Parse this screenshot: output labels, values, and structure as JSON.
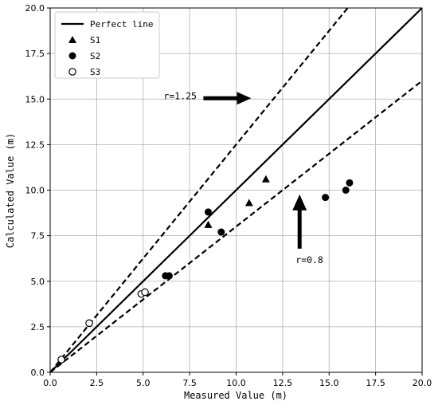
{
  "chart_data": {
    "type": "scatter",
    "xlabel": "Measured Value (m)",
    "ylabel": "Calculated Value (m)",
    "xlim": [
      0,
      20
    ],
    "ylim": [
      0,
      20
    ],
    "xticks": [
      "0.0",
      "2.5",
      "5.0",
      "7.5",
      "10.0",
      "12.5",
      "15.0",
      "17.5",
      "20.0"
    ],
    "yticks": [
      "0.0",
      "2.5",
      "5.0",
      "7.5",
      "10.0",
      "12.5",
      "15.0",
      "17.5",
      "20.0"
    ],
    "grid": true,
    "legend_position": "top-left",
    "lines": [
      {
        "name": "Perfect line",
        "slope": 1.0,
        "style": "solid"
      },
      {
        "slope": 1.25,
        "style": "dashed"
      },
      {
        "slope": 0.8,
        "style": "dashed"
      }
    ],
    "series": [
      {
        "name": "S1",
        "marker": "triangle",
        "points": [
          [
            8.5,
            8.1
          ],
          [
            10.7,
            9.3
          ],
          [
            11.6,
            10.6
          ]
        ]
      },
      {
        "name": "S2",
        "marker": "filled-circle",
        "points": [
          [
            6.2,
            5.3
          ],
          [
            6.4,
            5.3
          ],
          [
            8.5,
            8.8
          ],
          [
            9.2,
            7.7
          ],
          [
            14.8,
            9.6
          ],
          [
            15.9,
            10.0
          ],
          [
            16.1,
            10.4
          ]
        ]
      },
      {
        "name": "S3",
        "marker": "open-circle",
        "points": [
          [
            0.6,
            0.7
          ],
          [
            2.1,
            2.7
          ],
          [
            4.9,
            4.3
          ],
          [
            5.1,
            4.4
          ]
        ]
      }
    ],
    "annotations": [
      {
        "text": "r=1.25",
        "x": 6.1,
        "y": 15.0,
        "arrow": "right"
      },
      {
        "text": "r=0.8",
        "x": 13.2,
        "y": 6.0,
        "arrow": "up"
      }
    ]
  }
}
